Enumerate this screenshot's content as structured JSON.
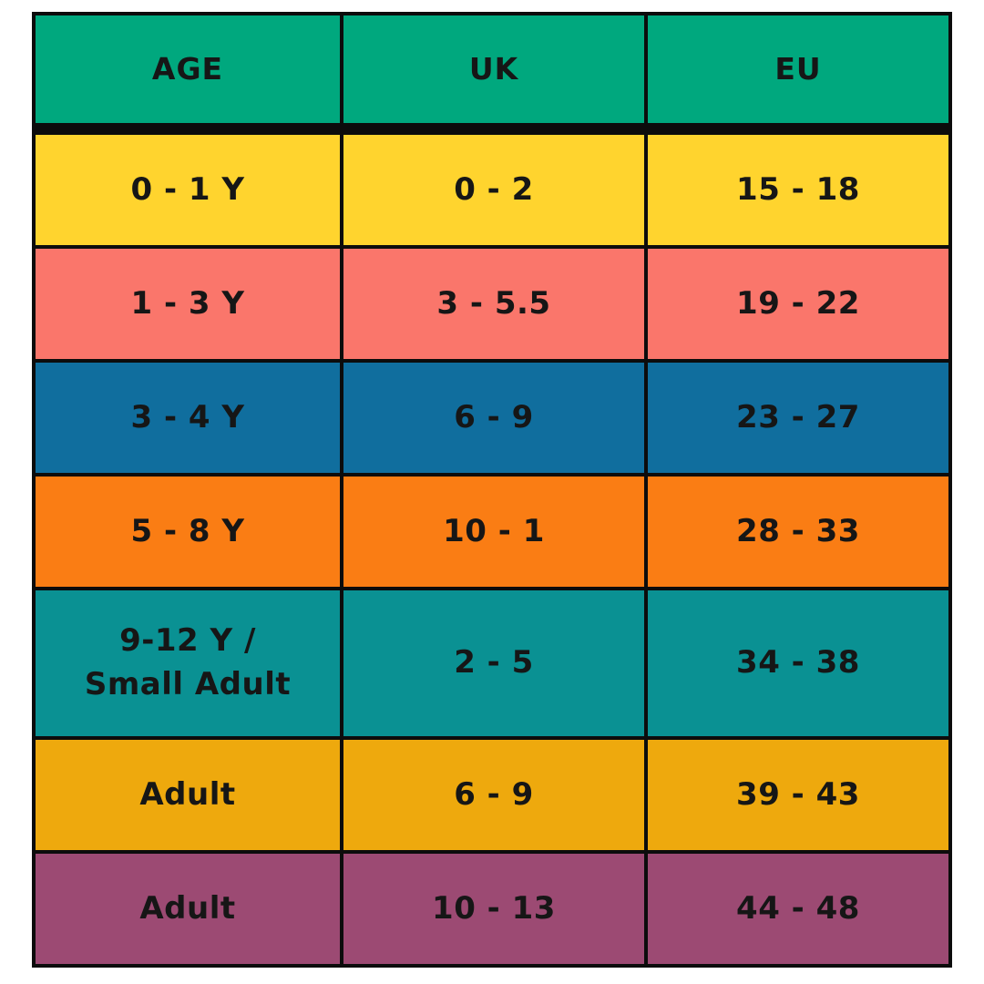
{
  "table": {
    "grid_color": "#0c0c0c",
    "header_bg": "#00a87e",
    "text_color": "#161616",
    "header": [
      {
        "label": "AGE"
      },
      {
        "label": "UK"
      },
      {
        "label": "EU"
      }
    ],
    "rows": [
      {
        "age": "0 - 1 Y",
        "uk": "0 - 2",
        "eu": "15 - 18",
        "bg": "#ffd42e"
      },
      {
        "age": "1 - 3 Y",
        "uk": "3 - 5.5",
        "eu": "19 - 22",
        "bg": "#fa766b"
      },
      {
        "age": "3 - 4 Y",
        "uk": "6 - 9",
        "eu": "23 - 27",
        "bg": "#106e9e"
      },
      {
        "age": "5 - 8 Y",
        "uk": "10 - 1",
        "eu": "28 - 33",
        "bg": "#fa7d14"
      },
      {
        "age": "9-12 Y /\nSmall Adult",
        "uk": "2 - 5",
        "eu": "34 - 38",
        "bg": "#0a9193"
      },
      {
        "age": "Adult",
        "uk": "6 - 9",
        "eu": "39 - 43",
        "bg": "#eea90d"
      },
      {
        "age": "Adult",
        "uk": "10 - 13",
        "eu": "44 - 48",
        "bg": "#9c4a73"
      }
    ]
  },
  "chart_data": {
    "type": "table",
    "columns": [
      "AGE",
      "UK",
      "EU"
    ],
    "rows": [
      [
        "0 - 1 Y",
        "0 - 2",
        "15 - 18"
      ],
      [
        "1 - 3 Y",
        "3 - 5.5",
        "19 - 22"
      ],
      [
        "3 - 4 Y",
        "6 - 9",
        "23 - 27"
      ],
      [
        "5 - 8 Y",
        "10 - 1",
        "28 - 33"
      ],
      [
        "9-12 Y / Small Adult",
        "2 - 5",
        "34 - 38"
      ],
      [
        "Adult",
        "6 - 9",
        "39 - 43"
      ],
      [
        "Adult",
        "10 - 13",
        "44 - 48"
      ]
    ],
    "row_colors": [
      "#ffd42e",
      "#fa766b",
      "#106e9e",
      "#fa7d14",
      "#0a9193",
      "#eea90d",
      "#9c4a73"
    ],
    "header_color": "#00a87e",
    "title": ""
  }
}
